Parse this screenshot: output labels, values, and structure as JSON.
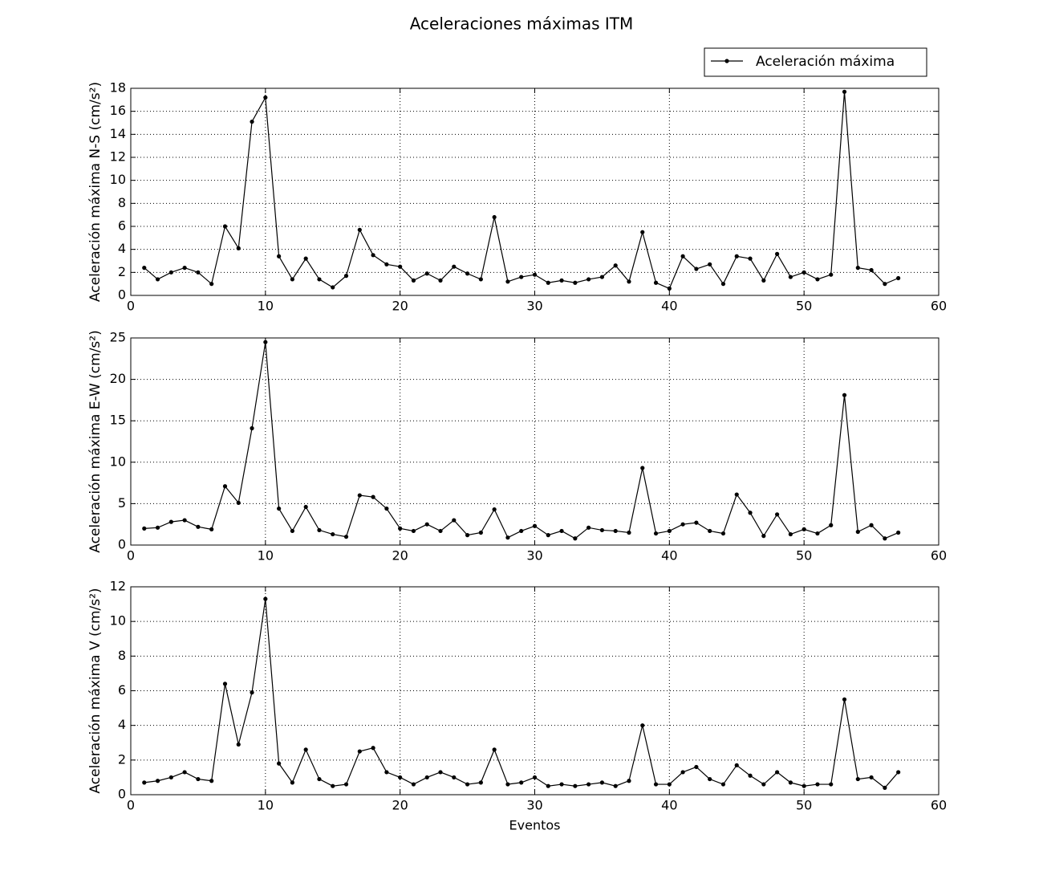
{
  "chart_data": [
    {
      "type": "line",
      "title": "Aceleraciones máximas ITM",
      "ylabel": "Aceleración máxima N-S (cm/s²)",
      "x": [
        1,
        2,
        3,
        4,
        5,
        6,
        7,
        8,
        9,
        10,
        11,
        12,
        13,
        14,
        15,
        16,
        17,
        18,
        19,
        20,
        21,
        22,
        23,
        24,
        25,
        26,
        27,
        28,
        29,
        30,
        31,
        32,
        33,
        34,
        35,
        36,
        37,
        38,
        39,
        40,
        41,
        42,
        43,
        44,
        45,
        46,
        47,
        48,
        49,
        50,
        51,
        52,
        53,
        54,
        55,
        56,
        57
      ],
      "series": [
        {
          "name": "Aceleración máxima",
          "color": "#000000",
          "values": [
            2.4,
            1.4,
            2.0,
            2.4,
            2.0,
            1.0,
            6.0,
            4.1,
            15.1,
            17.2,
            3.4,
            1.4,
            3.2,
            1.4,
            0.7,
            1.7,
            5.7,
            3.5,
            2.7,
            2.5,
            1.3,
            1.9,
            1.3,
            2.5,
            1.9,
            1.4,
            6.8,
            1.2,
            1.6,
            1.8,
            1.1,
            1.3,
            1.1,
            1.4,
            1.6,
            2.6,
            1.2,
            5.5,
            1.1,
            0.6,
            3.4,
            2.3,
            2.7,
            1.0,
            3.4,
            3.2,
            1.3,
            3.6,
            1.6,
            2.0,
            1.4,
            1.8,
            17.7,
            2.4,
            2.2,
            1.0,
            1.5
          ]
        }
      ],
      "xlim": [
        0,
        60
      ],
      "xticks": [
        0,
        10,
        20,
        30,
        40,
        50,
        60
      ],
      "ylim": [
        0,
        18
      ],
      "yticks": [
        0,
        2,
        4,
        6,
        8,
        10,
        12,
        14,
        16,
        18
      ],
      "grid": true,
      "legend": "upper right"
    },
    {
      "type": "line",
      "ylabel": "Aceleración máxima E-W (cm/s²)",
      "x": [
        1,
        2,
        3,
        4,
        5,
        6,
        7,
        8,
        9,
        10,
        11,
        12,
        13,
        14,
        15,
        16,
        17,
        18,
        19,
        20,
        21,
        22,
        23,
        24,
        25,
        26,
        27,
        28,
        29,
        30,
        31,
        32,
        33,
        34,
        35,
        36,
        37,
        38,
        39,
        40,
        41,
        42,
        43,
        44,
        45,
        46,
        47,
        48,
        49,
        50,
        51,
        52,
        53,
        54,
        55,
        56,
        57
      ],
      "series": [
        {
          "color": "#000000",
          "values": [
            2.0,
            2.1,
            2.8,
            3.0,
            2.2,
            1.9,
            7.1,
            5.1,
            14.1,
            24.5,
            4.4,
            1.7,
            4.6,
            1.8,
            1.3,
            1.0,
            6.0,
            5.8,
            4.4,
            2.0,
            1.7,
            2.5,
            1.7,
            3.0,
            1.2,
            1.5,
            4.3,
            0.9,
            1.7,
            2.3,
            1.2,
            1.7,
            0.8,
            2.1,
            1.8,
            1.7,
            1.5,
            9.3,
            1.4,
            1.7,
            2.5,
            2.7,
            1.7,
            1.4,
            6.1,
            3.9,
            1.1,
            3.7,
            1.3,
            1.9,
            1.4,
            2.4,
            18.1,
            1.6,
            2.4,
            0.8,
            1.5
          ]
        }
      ],
      "xlim": [
        0,
        60
      ],
      "xticks": [
        0,
        10,
        20,
        30,
        40,
        50,
        60
      ],
      "ylim": [
        0,
        25
      ],
      "yticks": [
        0,
        5,
        10,
        15,
        20,
        25
      ],
      "grid": true
    },
    {
      "type": "line",
      "ylabel": "Aceleración máxima V (cm/s²)",
      "xlabel": "Eventos",
      "x": [
        1,
        2,
        3,
        4,
        5,
        6,
        7,
        8,
        9,
        10,
        11,
        12,
        13,
        14,
        15,
        16,
        17,
        18,
        19,
        20,
        21,
        22,
        23,
        24,
        25,
        26,
        27,
        28,
        29,
        30,
        31,
        32,
        33,
        34,
        35,
        36,
        37,
        38,
        39,
        40,
        41,
        42,
        43,
        44,
        45,
        46,
        47,
        48,
        49,
        50,
        51,
        52,
        53,
        54,
        55,
        56,
        57
      ],
      "series": [
        {
          "color": "#000000",
          "values": [
            0.7,
            0.8,
            1.0,
            1.3,
            0.9,
            0.8,
            6.4,
            2.9,
            5.9,
            11.3,
            1.8,
            0.7,
            2.6,
            0.9,
            0.5,
            0.6,
            2.5,
            2.7,
            1.3,
            1.0,
            0.6,
            1.0,
            1.3,
            1.0,
            0.6,
            0.7,
            2.6,
            0.6,
            0.7,
            1.0,
            0.5,
            0.6,
            0.5,
            0.6,
            0.7,
            0.5,
            0.8,
            4.0,
            0.6,
            0.6,
            1.3,
            1.6,
            0.9,
            0.6,
            1.7,
            1.1,
            0.6,
            1.3,
            0.7,
            0.5,
            0.6,
            0.6,
            5.5,
            0.9,
            1.0,
            0.4,
            1.3
          ]
        }
      ],
      "xlim": [
        0,
        60
      ],
      "xticks": [
        0,
        10,
        20,
        30,
        40,
        50,
        60
      ],
      "ylim": [
        0,
        12
      ],
      "yticks": [
        0,
        2,
        4,
        6,
        8,
        10,
        12
      ],
      "grid": true
    }
  ]
}
